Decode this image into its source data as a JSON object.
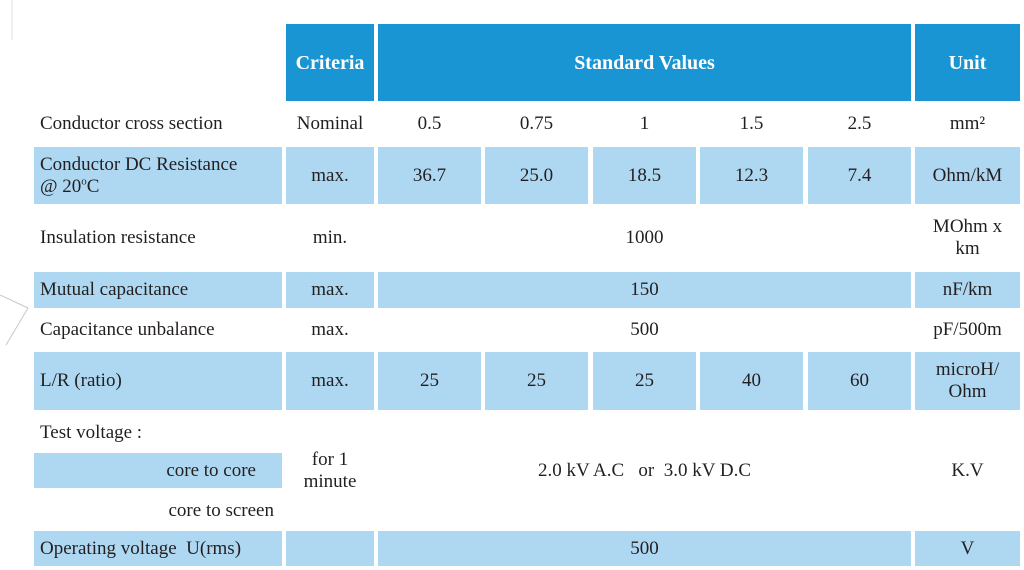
{
  "header": {
    "criteria": "Criteria",
    "standard_values": "Standard Values",
    "unit": "Unit"
  },
  "rows": {
    "cross_section": {
      "label": "Conductor cross section",
      "criteria": "Nominal",
      "values": [
        "0.5",
        "0.75",
        "1",
        "1.5",
        "2.5"
      ],
      "unit": "mm²"
    },
    "dc_resistance": {
      "label_line1": "Conductor DC Resistance",
      "label_line2_prefix": "@ 20",
      "label_sup": "o",
      "label_line2_suffix": "C",
      "criteria": "max.",
      "values": [
        "36.7",
        "25.0",
        "18.5",
        "12.3",
        "7.4"
      ],
      "unit": "Ohm/kM"
    },
    "insulation": {
      "label": "Insulation resistance",
      "criteria": "min.",
      "value": "1000",
      "unit_line1": "MOhm x",
      "unit_line2": "km"
    },
    "mutual_cap": {
      "label": "Mutual capacitance",
      "criteria": "max.",
      "value": "150",
      "unit": "nF/km"
    },
    "cap_unbalance": {
      "label": "Capacitance unbalance",
      "criteria": "max.",
      "value": "500",
      "unit": "pF/500m"
    },
    "lr_ratio": {
      "label": "L/R (ratio)",
      "criteria": "max.",
      "values": [
        "25",
        "25",
        "25",
        "40",
        "60"
      ],
      "unit_line1": "microH/",
      "unit_line2": "Ohm"
    },
    "test_voltage": {
      "label": "Test voltage :",
      "sub1": "core to core",
      "sub2": "core to screen",
      "criteria_line1": "for 1",
      "criteria_line2": "minute",
      "value": "2.0 kV A.C   or  3.0 kV D.C",
      "unit": "K.V"
    },
    "operating_voltage": {
      "label": "Operating voltage  U(rms)",
      "criteria": "",
      "value": "500",
      "unit": "V"
    }
  },
  "colors": {
    "header_blue": "#1a95d4",
    "row_light_blue": "#aed8f2",
    "text": "#231f20"
  }
}
